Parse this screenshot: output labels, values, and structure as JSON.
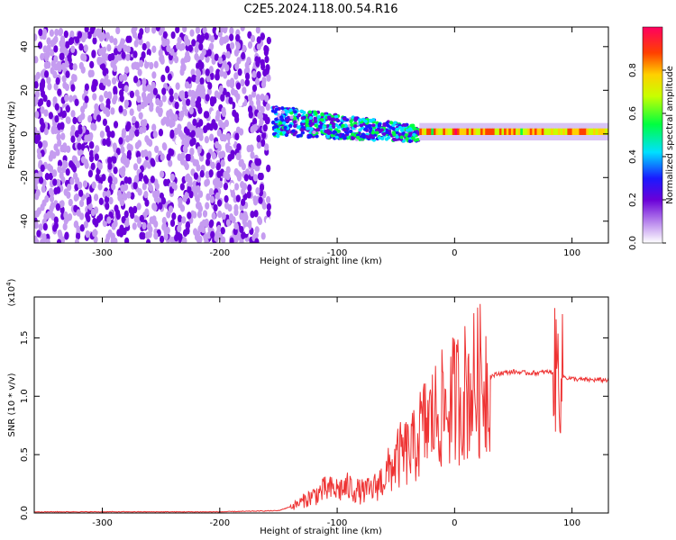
{
  "title": "C2E5.2024.118.00.54.R16",
  "chart_data": [
    {
      "type": "heatmap",
      "xlabel": "Height of straight line (km)",
      "ylabel": "Frequency (Hz)",
      "xlim": [
        -358,
        131
      ],
      "ylim": [
        -50,
        49
      ],
      "xticks": [
        -300,
        -200,
        -100,
        0,
        100
      ],
      "yticks": [
        -40,
        -20,
        0,
        20,
        40
      ],
      "colorbar": {
        "label": "Normalized spectral amplitude",
        "range": [
          0,
          1
        ],
        "ticks": [
          "0.0",
          "0.2",
          "0.4",
          "0.6",
          "0.8"
        ],
        "colormap": [
          "#ffffff",
          "#c59cf0",
          "#6a00d8",
          "#1a1aff",
          "#00e0ff",
          "#00ff40",
          "#c8ff00",
          "#ffd000",
          "#ff4000",
          "#ff0060"
        ]
      },
      "regions": [
        {
          "x": [
            -358,
            -158
          ],
          "f": [
            -50,
            49
          ],
          "description_level": 0.25
        },
        {
          "x": [
            -155,
            -30
          ],
          "f": [
            -8,
            10
          ],
          "description_level": 0.45
        },
        {
          "x": [
            -30,
            131
          ],
          "f": [
            -2,
            3
          ],
          "description_level": 0.85
        }
      ],
      "ridge_frequency_points": {
        "x": [
          -155,
          -120,
          -90,
          -60,
          -40,
          -20,
          0,
          50,
          100,
          131
        ],
        "f": [
          5,
          4,
          2,
          0,
          -1,
          0,
          0.5,
          1,
          1,
          1
        ]
      }
    },
    {
      "type": "line",
      "xlabel": "Height of straight line (km)",
      "ylabel": "SNR (10 * v/v)",
      "scale_label": "(x10^4)",
      "xlim": [
        -358,
        131
      ],
      "ylim": [
        0,
        1.85
      ],
      "xticks": [
        -300,
        -200,
        -100,
        0,
        100
      ],
      "yticks": [
        "0.0",
        "0.5",
        "1.0",
        "1.5"
      ],
      "color": "#ee3333",
      "series": [
        {
          "x": [
            -358,
            -300,
            -250,
            -200,
            -150,
            -135,
            -120,
            -110,
            -100,
            -90,
            -80,
            -70,
            -60,
            -50,
            -45,
            -40,
            -35,
            -30,
            -25,
            -20,
            -15,
            -10,
            -5,
            0,
            10,
            20,
            30,
            40,
            50,
            60,
            70,
            80,
            85,
            88,
            90,
            95,
            100,
            110,
            120,
            131
          ],
          "y": [
            0.01,
            0.01,
            0.01,
            0.01,
            0.02,
            0.07,
            0.15,
            0.2,
            0.2,
            0.22,
            0.18,
            0.2,
            0.3,
            0.45,
            0.5,
            0.52,
            0.55,
            0.68,
            0.75,
            0.8,
            0.85,
            0.88,
            0.9,
            0.98,
            1.05,
            1.12,
            1.17,
            1.2,
            1.21,
            1.2,
            1.2,
            1.21,
            1.2,
            1.25,
            1.18,
            1.16,
            1.15,
            1.14,
            1.14,
            1.14
          ]
        }
      ]
    }
  ]
}
